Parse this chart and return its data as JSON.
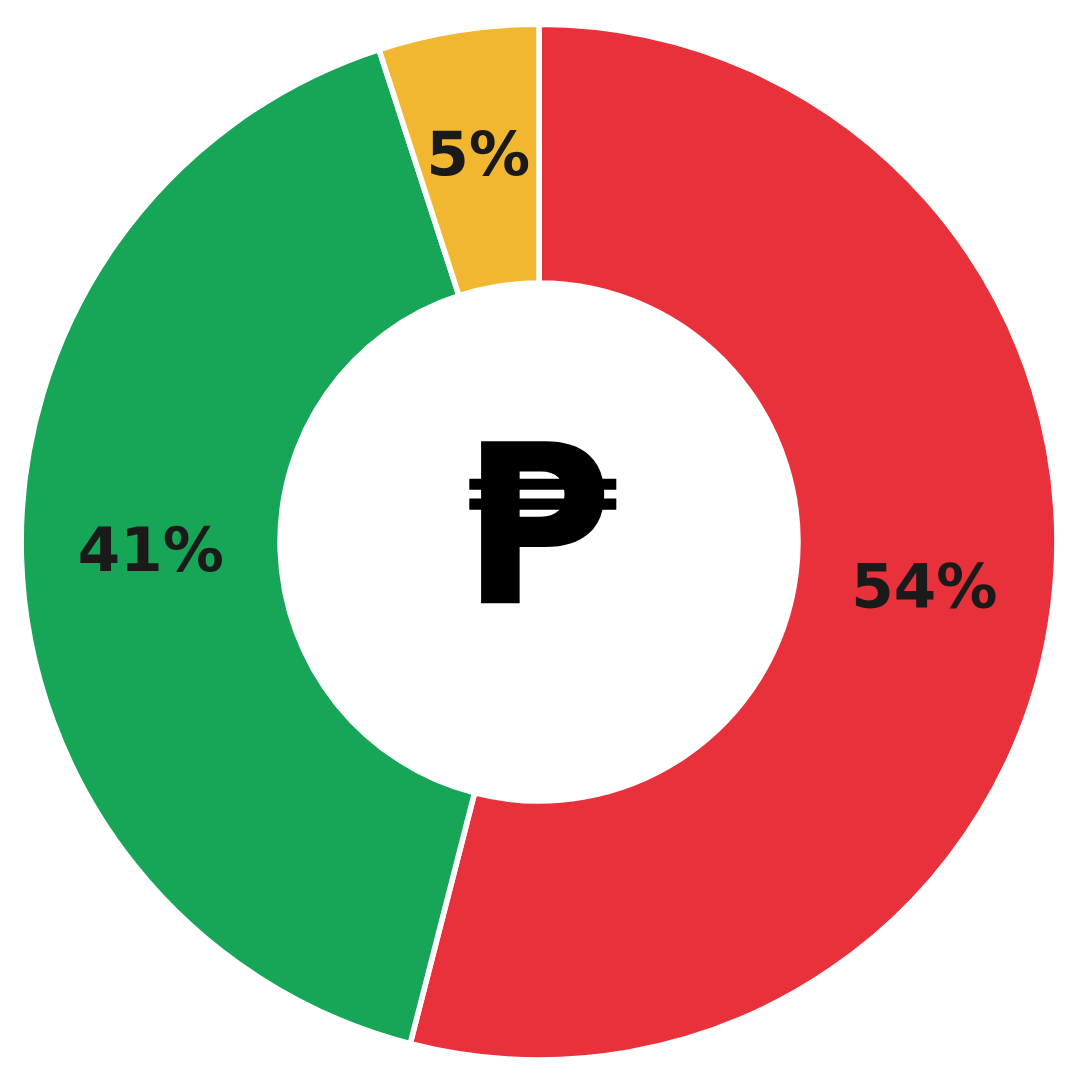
{
  "chart_data": {
    "type": "donut",
    "categories": [
      null,
      null,
      null
    ],
    "values": [
      54,
      41,
      5
    ],
    "colors": [
      "#e8313b",
      "#17a557",
      "#f2b731"
    ],
    "value_labels": [
      "54%",
      "41%",
      "5%"
    ],
    "annotations": [
      "₱"
    ]
  }
}
